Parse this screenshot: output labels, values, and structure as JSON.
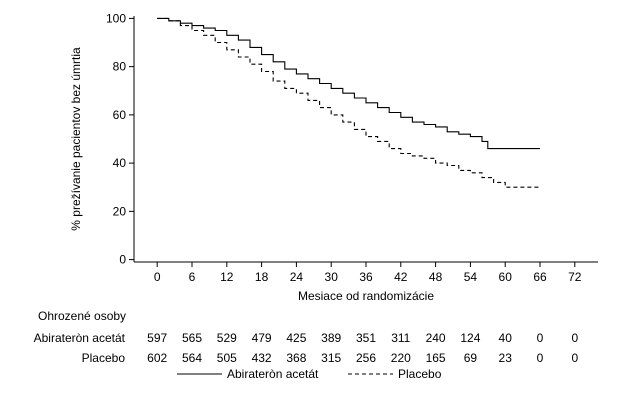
{
  "chart_data": {
    "type": "line",
    "xlabel": "Mesiace od randomizácie",
    "ylabel": "% prežívanie pacientov bez úmrtia",
    "xlim": [
      -4,
      76
    ],
    "ylim": [
      -1,
      101
    ],
    "x_ticks": [
      0,
      6,
      12,
      18,
      24,
      30,
      36,
      42,
      48,
      54,
      60,
      66,
      72
    ],
    "y_ticks": [
      0,
      20,
      40,
      60,
      80,
      100
    ],
    "grid": false,
    "legend_position": "bottom",
    "series": [
      {
        "name": "Abirateròn acetát",
        "style": "solid",
        "color": "#000000",
        "x": [
          0,
          2,
          4,
          6,
          8,
          10,
          12,
          14,
          16,
          18,
          20,
          22,
          24,
          26,
          28,
          30,
          32,
          34,
          36,
          38,
          40,
          42,
          44,
          46,
          48,
          50,
          52,
          54,
          56,
          57,
          60,
          63,
          66
        ],
        "y": [
          100,
          99,
          98,
          97,
          96,
          95,
          93,
          91,
          88,
          85,
          82,
          79,
          77,
          75,
          73,
          71,
          69,
          67,
          65,
          63,
          61,
          59,
          57,
          56,
          55,
          53,
          52,
          51,
          49,
          46,
          46,
          46,
          46
        ]
      },
      {
        "name": "Placebo",
        "style": "dashed",
        "color": "#000000",
        "x": [
          0,
          2,
          4,
          6,
          8,
          10,
          12,
          14,
          16,
          18,
          20,
          22,
          24,
          26,
          28,
          30,
          32,
          34,
          36,
          38,
          40,
          42,
          44,
          46,
          48,
          50,
          52,
          54,
          56,
          58,
          60,
          63,
          66
        ],
        "y": [
          100,
          99,
          97,
          95,
          93,
          90,
          87,
          84,
          81,
          78,
          74,
          71,
          69,
          66,
          63,
          60,
          57,
          54,
          51,
          49,
          46,
          44,
          43,
          42,
          40,
          39,
          37,
          36,
          34,
          32,
          30,
          30,
          30
        ]
      }
    ],
    "risk_table": {
      "title": "Ohrozené osoby",
      "rows": [
        {
          "label": "Abirateròn acetát",
          "values": [
            597,
            565,
            529,
            479,
            425,
            389,
            351,
            311,
            240,
            124,
            40,
            0,
            0
          ]
        },
        {
          "label": "Placebo",
          "values": [
            602,
            564,
            505,
            432,
            368,
            315,
            256,
            220,
            165,
            69,
            23,
            0,
            0
          ]
        }
      ]
    }
  }
}
